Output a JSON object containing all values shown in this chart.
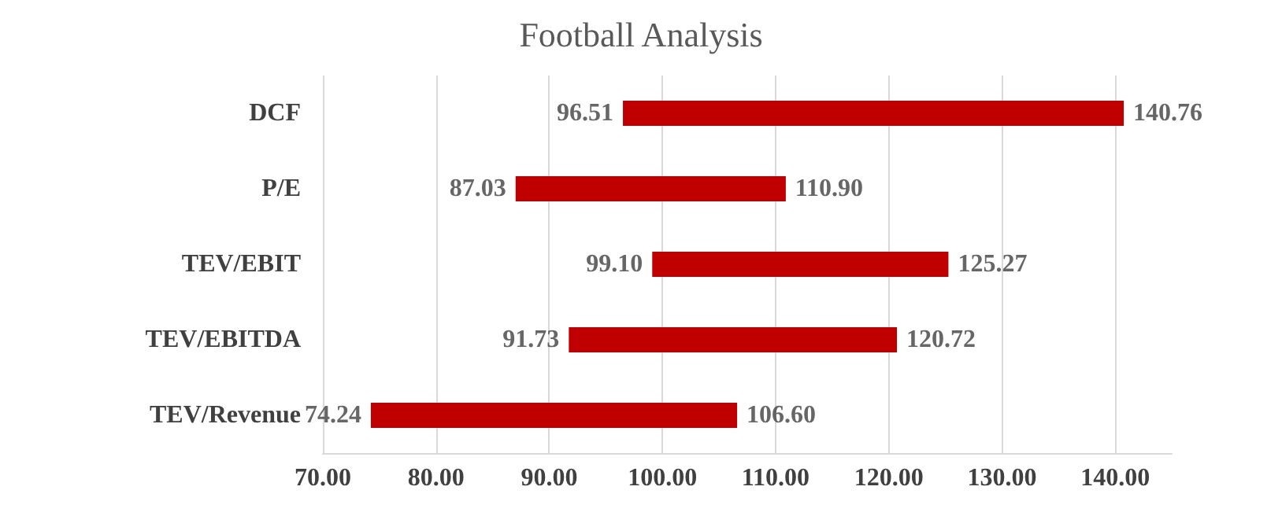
{
  "chart_data": {
    "type": "bar",
    "orientation": "horizontal",
    "title": "Football Analysis",
    "categories": [
      "DCF",
      "P/E",
      "TEV/EBIT",
      "TEV/EBITDA",
      "TEV/Revenue"
    ],
    "base": [
      96.51,
      87.03,
      99.1,
      91.73,
      74.24
    ],
    "values": [
      44.25,
      23.87,
      26.17,
      28.99,
      32.36
    ],
    "color": "#c00000",
    "xlim": [
      70,
      145
    ],
    "xticks": [
      {
        "value": 70,
        "label": "70.00"
      },
      {
        "value": 80,
        "label": "80.00"
      },
      {
        "value": 90,
        "label": "90.00"
      },
      {
        "value": 100,
        "label": "100.00"
      },
      {
        "value": 110,
        "label": "110.00"
      },
      {
        "value": 120,
        "label": "120.00"
      },
      {
        "value": 130,
        "label": "130.00"
      },
      {
        "value": 140,
        "label": "140.00"
      }
    ],
    "grid": "x",
    "annotations": [
      {
        "text": "96.51",
        "x": 96.51,
        "y": "DCF"
      },
      {
        "text": "140.76",
        "x": 140.76,
        "y": "DCF"
      },
      {
        "text": "87.03",
        "x": 87.03,
        "y": "P/E"
      },
      {
        "text": "110.90",
        "x": 110.9,
        "y": "P/E"
      },
      {
        "text": "99.10",
        "x": 99.1,
        "y": "TEV/EBIT"
      },
      {
        "text": "125.27",
        "x": 125.27,
        "y": "TEV/EBIT"
      },
      {
        "text": "91.73",
        "x": 91.73,
        "y": "TEV/EBITDA"
      },
      {
        "text": "120.72",
        "x": 120.72,
        "y": "TEV/EBITDA"
      },
      {
        "text": "74.24",
        "x": 74.24,
        "y": "TEV/Revenue"
      },
      {
        "text": "106.60",
        "x": 106.6,
        "y": "TEV/Revenue"
      }
    ]
  }
}
